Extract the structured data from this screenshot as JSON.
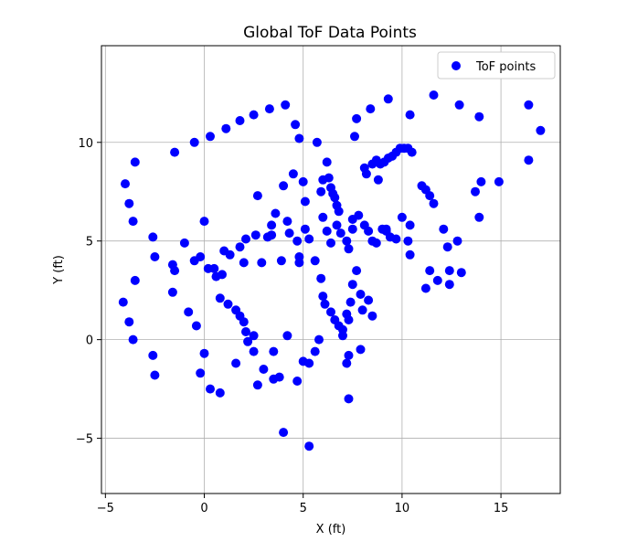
{
  "chart_data": {
    "type": "scatter",
    "title": "Global ToF Data Points",
    "xlabel": "X (ft)",
    "ylabel": "Y (ft)",
    "xlim": [
      -5.2,
      18.0
    ],
    "ylim": [
      -7.8,
      14.9
    ],
    "xticks": [
      -5,
      0,
      5,
      10,
      15
    ],
    "yticks": [
      -5,
      0,
      5,
      10
    ],
    "xtick_labels": [
      "−5",
      "0",
      "5",
      "10",
      "15"
    ],
    "ytick_labels": [
      "−5",
      "0",
      "5",
      "10"
    ],
    "grid": true,
    "legend_position": "top-right",
    "series": [
      {
        "name": "ToF points",
        "color": "#0000ff",
        "marker": "circle",
        "points": [
          [
            -4.0,
            7.9
          ],
          [
            -3.8,
            6.9
          ],
          [
            -3.6,
            6.0
          ],
          [
            -3.5,
            9.0
          ],
          [
            -2.6,
            5.2
          ],
          [
            -2.5,
            4.2
          ],
          [
            -1.6,
            3.8
          ],
          [
            -1.5,
            3.5
          ],
          [
            -1.6,
            2.4
          ],
          [
            -0.8,
            1.4
          ],
          [
            -1.0,
            4.9
          ],
          [
            -0.5,
            4.0
          ],
          [
            -0.2,
            4.2
          ],
          [
            0.0,
            6.0
          ],
          [
            0.2,
            3.6
          ],
          [
            0.5,
            3.6
          ],
          [
            0.6,
            3.2
          ],
          [
            -4.1,
            1.9
          ],
          [
            -3.8,
            0.9
          ],
          [
            -3.6,
            0.0
          ],
          [
            -3.5,
            3.0
          ],
          [
            -2.6,
            -0.8
          ],
          [
            -2.5,
            -1.8
          ],
          [
            -0.4,
            0.7
          ],
          [
            0.0,
            -0.7
          ],
          [
            -0.2,
            -1.7
          ],
          [
            0.3,
            -2.5
          ],
          [
            0.8,
            -2.7
          ],
          [
            1.6,
            -1.2
          ],
          [
            2.5,
            -0.6
          ],
          [
            2.7,
            -2.3
          ],
          [
            3.0,
            -1.5
          ],
          [
            3.5,
            -2.0
          ],
          [
            3.8,
            -1.9
          ],
          [
            4.2,
            0.2
          ],
          [
            4.7,
            -2.1
          ],
          [
            5.0,
            -1.1
          ],
          [
            3.5,
            -0.6
          ],
          [
            4.0,
            -4.7
          ],
          [
            5.3,
            -5.4
          ],
          [
            7.3,
            -3.0
          ],
          [
            -1.5,
            9.5
          ],
          [
            -0.5,
            10.0
          ],
          [
            0.3,
            10.3
          ],
          [
            1.1,
            10.7
          ],
          [
            1.8,
            11.1
          ],
          [
            2.5,
            11.4
          ],
          [
            3.3,
            11.7
          ],
          [
            4.1,
            11.9
          ],
          [
            4.6,
            10.9
          ],
          [
            4.8,
            10.2
          ],
          [
            5.7,
            10.0
          ],
          [
            0.8,
            2.1
          ],
          [
            1.2,
            1.8
          ],
          [
            1.6,
            1.5
          ],
          [
            1.8,
            1.2
          ],
          [
            2.0,
            0.9
          ],
          [
            2.1,
            0.4
          ],
          [
            2.2,
            -0.1
          ],
          [
            2.5,
            0.2
          ],
          [
            0.9,
            3.3
          ],
          [
            1.0,
            4.5
          ],
          [
            1.3,
            4.3
          ],
          [
            1.8,
            4.7
          ],
          [
            2.0,
            3.9
          ],
          [
            2.1,
            5.1
          ],
          [
            2.6,
            5.3
          ],
          [
            2.7,
            7.3
          ],
          [
            2.9,
            3.9
          ],
          [
            3.2,
            5.2
          ],
          [
            3.4,
            5.8
          ],
          [
            3.4,
            5.3
          ],
          [
            3.6,
            6.4
          ],
          [
            3.9,
            4.0
          ],
          [
            4.0,
            7.8
          ],
          [
            4.2,
            6.0
          ],
          [
            4.3,
            5.4
          ],
          [
            4.5,
            8.4
          ],
          [
            4.7,
            5.0
          ],
          [
            4.8,
            4.2
          ],
          [
            4.8,
            3.9
          ],
          [
            5.0,
            8.0
          ],
          [
            5.1,
            7.0
          ],
          [
            5.1,
            5.6
          ],
          [
            5.3,
            5.1
          ],
          [
            5.6,
            4.0
          ],
          [
            5.9,
            7.5
          ],
          [
            6.0,
            8.1
          ],
          [
            6.2,
            9.0
          ],
          [
            6.3,
            8.2
          ],
          [
            6.4,
            7.7
          ],
          [
            6.5,
            7.4
          ],
          [
            6.6,
            7.2
          ],
          [
            6.7,
            6.8
          ],
          [
            6.8,
            6.5
          ],
          [
            6.0,
            6.2
          ],
          [
            6.2,
            5.5
          ],
          [
            6.4,
            4.9
          ],
          [
            6.7,
            5.8
          ],
          [
            6.9,
            5.4
          ],
          [
            7.2,
            5.0
          ],
          [
            7.3,
            4.6
          ],
          [
            7.5,
            5.6
          ],
          [
            7.5,
            6.1
          ],
          [
            7.8,
            6.3
          ],
          [
            8.1,
            5.8
          ],
          [
            8.3,
            5.5
          ],
          [
            8.5,
            5.0
          ],
          [
            8.7,
            4.9
          ],
          [
            9.0,
            5.6
          ],
          [
            9.2,
            5.5
          ],
          [
            9.4,
            5.2
          ],
          [
            9.7,
            5.1
          ],
          [
            10.3,
            5.0
          ],
          [
            5.9,
            3.1
          ],
          [
            6.0,
            2.2
          ],
          [
            6.1,
            1.8
          ],
          [
            6.4,
            1.4
          ],
          [
            6.6,
            1.0
          ],
          [
            6.8,
            0.7
          ],
          [
            7.0,
            0.5
          ],
          [
            7.2,
            1.3
          ],
          [
            7.3,
            1.0
          ],
          [
            7.4,
            1.9
          ],
          [
            7.5,
            2.8
          ],
          [
            7.7,
            3.5
          ],
          [
            7.9,
            2.3
          ],
          [
            8.0,
            1.5
          ],
          [
            8.3,
            2.0
          ],
          [
            8.5,
            1.2
          ],
          [
            7.2,
            -1.2
          ],
          [
            7.3,
            -0.8
          ],
          [
            7.9,
            -0.5
          ],
          [
            7.0,
            0.2
          ],
          [
            5.8,
            0.0
          ],
          [
            5.6,
            -0.6
          ],
          [
            5.3,
            -1.2
          ],
          [
            7.6,
            10.3
          ],
          [
            7.7,
            11.2
          ],
          [
            8.1,
            8.7
          ],
          [
            8.2,
            8.4
          ],
          [
            8.5,
            8.9
          ],
          [
            8.7,
            9.1
          ],
          [
            8.9,
            8.9
          ],
          [
            9.1,
            9.0
          ],
          [
            9.3,
            9.2
          ],
          [
            9.5,
            9.3
          ],
          [
            9.7,
            9.5
          ],
          [
            9.9,
            9.7
          ],
          [
            10.1,
            9.7
          ],
          [
            10.3,
            9.7
          ],
          [
            10.5,
            9.5
          ],
          [
            10.0,
            6.2
          ],
          [
            10.4,
            5.8
          ],
          [
            10.4,
            4.3
          ],
          [
            9.2,
            5.6
          ],
          [
            8.8,
            8.1
          ],
          [
            8.4,
            11.7
          ],
          [
            9.3,
            12.2
          ],
          [
            10.4,
            11.4
          ],
          [
            11.0,
            7.8
          ],
          [
            11.2,
            7.6
          ],
          [
            11.4,
            7.3
          ],
          [
            11.6,
            6.9
          ],
          [
            12.1,
            5.6
          ],
          [
            12.3,
            4.7
          ],
          [
            12.8,
            5.0
          ],
          [
            11.4,
            3.5
          ],
          [
            11.8,
            3.0
          ],
          [
            12.4,
            3.5
          ],
          [
            12.4,
            2.8
          ],
          [
            13.0,
            3.4
          ],
          [
            11.2,
            2.6
          ],
          [
            12.9,
            11.9
          ],
          [
            11.6,
            12.4
          ],
          [
            13.9,
            11.3
          ],
          [
            13.7,
            7.5
          ],
          [
            14.0,
            8.0
          ],
          [
            13.9,
            6.2
          ],
          [
            14.9,
            8.0
          ],
          [
            16.4,
            11.9
          ],
          [
            16.4,
            9.1
          ],
          [
            17.0,
            10.6
          ]
        ]
      }
    ]
  }
}
